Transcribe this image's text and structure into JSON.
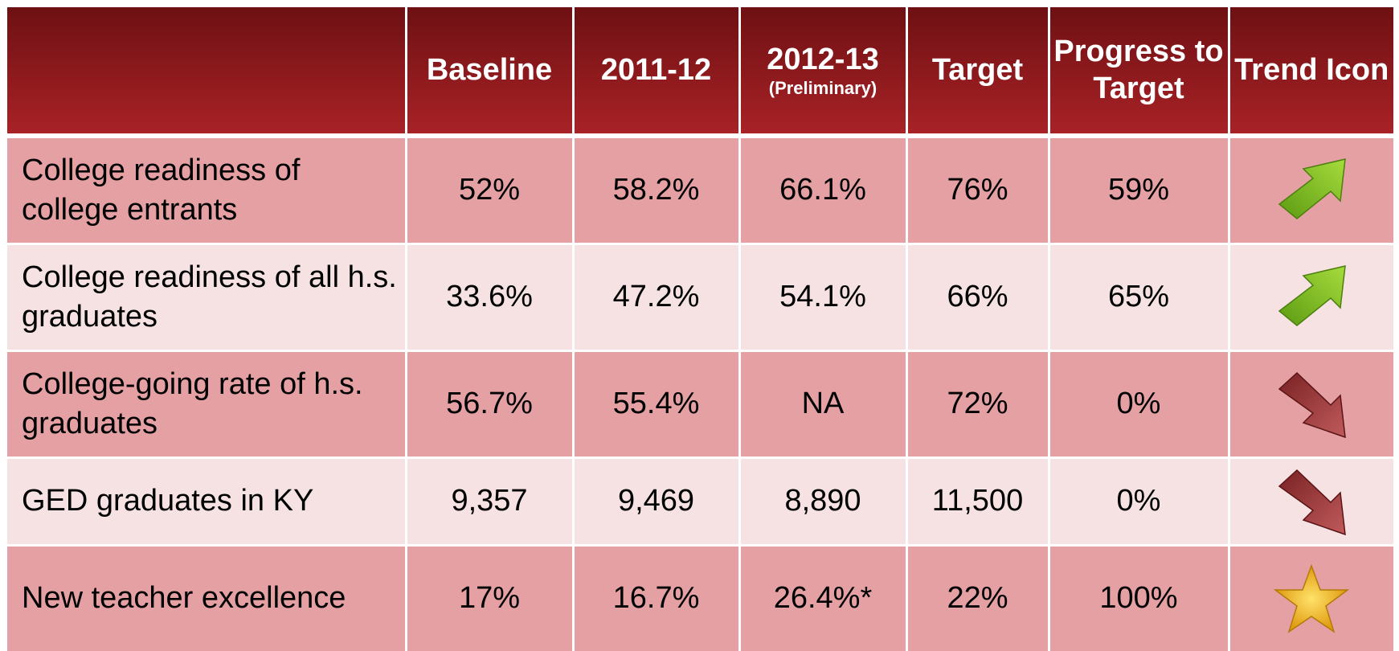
{
  "table": {
    "columns": [
      "Baseline",
      "2011-12",
      "2012-13",
      "Target",
      "Progress to Target",
      "Trend Icon"
    ],
    "preliminary_note": "(Preliminary)",
    "rows": [
      [
        "College readiness of college entrants",
        "52%",
        "58.2%",
        "66.1%",
        "76%",
        "59%"
      ],
      [
        "College readiness of all h.s. graduates",
        "33.6%",
        "47.2%",
        "54.1%",
        "66%",
        "65%"
      ],
      [
        "College-going rate of h.s. graduates",
        "56.7%",
        "55.4%",
        "NA",
        "72%",
        "0%"
      ],
      [
        "GED graduates in KY",
        "9,357",
        "9,469",
        "8,890",
        "11,500",
        "0%"
      ],
      [
        "New teacher excellence",
        "17%",
        "16.7%",
        "26.4%*",
        "22%",
        "100%"
      ]
    ]
  }
}
